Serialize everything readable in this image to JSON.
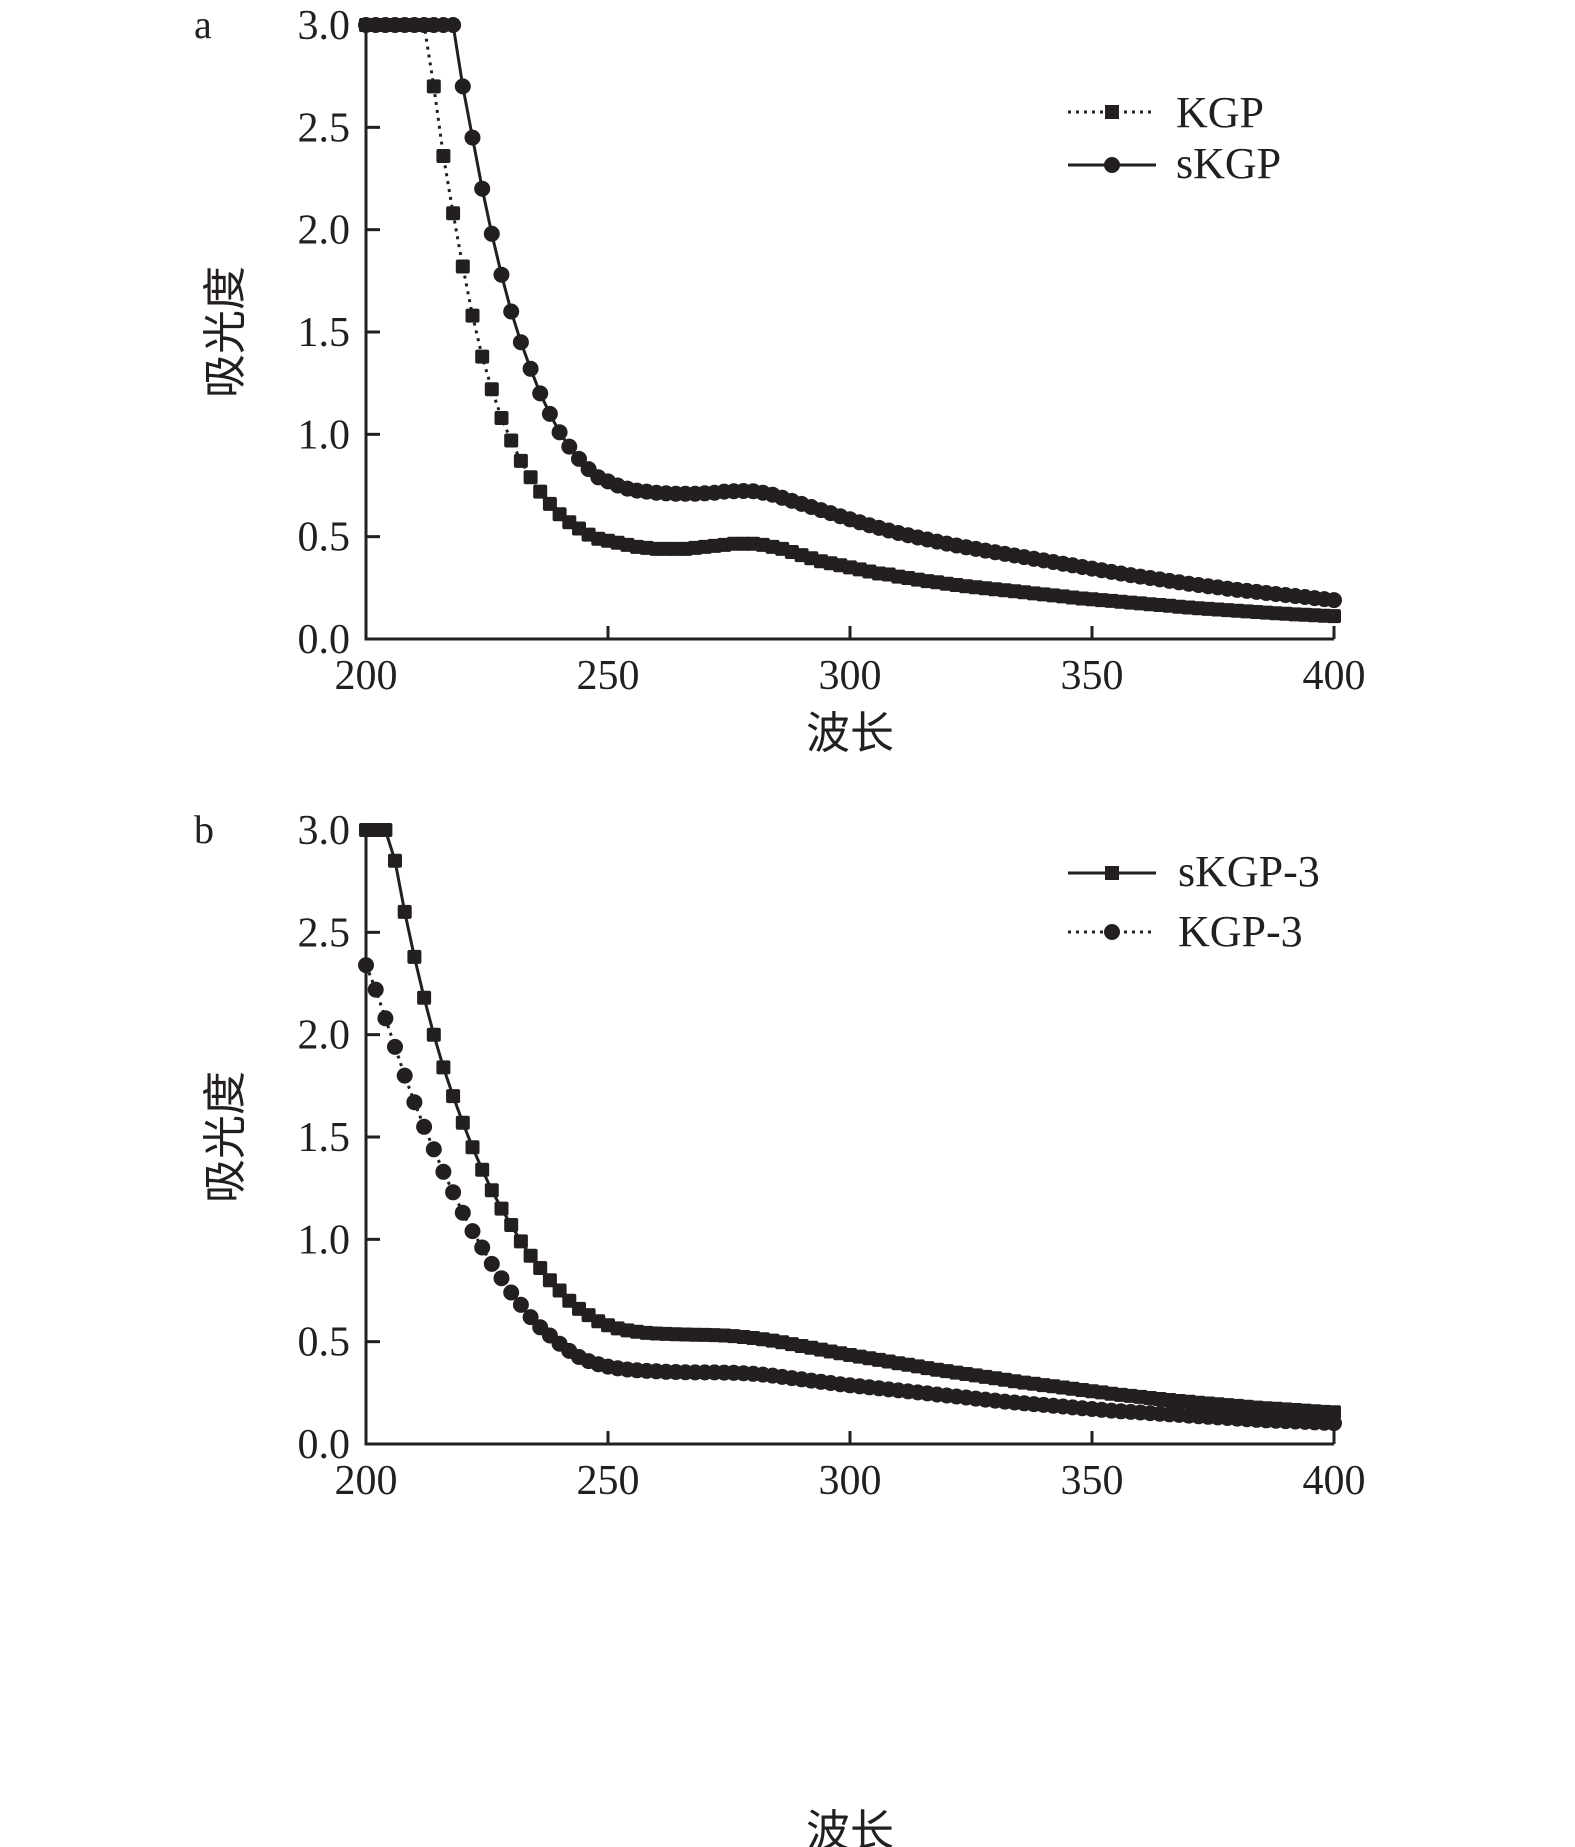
{
  "chart_data": [
    {
      "type": "scatter",
      "panel_label": "a",
      "xlabel": "波长",
      "ylabel": "吸光度",
      "xlim": [
        200,
        400
      ],
      "ylim": [
        0.0,
        3.0
      ],
      "x_ticks": [
        "200",
        "250",
        "300",
        "350",
        "400"
      ],
      "y_ticks": [
        "0.0",
        "0.5",
        "1.0",
        "1.5",
        "2.0",
        "2.5",
        "3.0"
      ],
      "grid": false,
      "legend_position": "top-right",
      "x": [
        200,
        202,
        204,
        206,
        208,
        210,
        212,
        214,
        216,
        218,
        220,
        222,
        224,
        226,
        228,
        230,
        232,
        234,
        236,
        238,
        240,
        242,
        244,
        246,
        248,
        250,
        252,
        254,
        256,
        258,
        260,
        262,
        264,
        266,
        268,
        270,
        272,
        274,
        276,
        278,
        280,
        282,
        284,
        286,
        288,
        290,
        292,
        294,
        296,
        298,
        300,
        302,
        304,
        306,
        308,
        310,
        312,
        314,
        316,
        318,
        320,
        322,
        324,
        326,
        328,
        330,
        332,
        334,
        336,
        338,
        340,
        342,
        344,
        346,
        348,
        350,
        352,
        354,
        356,
        358,
        360,
        362,
        364,
        366,
        368,
        370,
        372,
        374,
        376,
        378,
        380,
        382,
        384,
        386,
        388,
        390,
        392,
        394,
        396,
        398,
        400
      ],
      "series": [
        {
          "name": "KGP",
          "line_style": "dotted",
          "marker": "square",
          "color": "#231f20",
          "values": [
            3.0,
            3.0,
            3.0,
            3.0,
            3.0,
            3.0,
            3.0,
            2.7,
            2.36,
            2.08,
            1.82,
            1.58,
            1.38,
            1.22,
            1.08,
            0.97,
            0.87,
            0.79,
            0.72,
            0.66,
            0.61,
            0.57,
            0.54,
            0.51,
            0.49,
            0.48,
            0.47,
            0.46,
            0.45,
            0.445,
            0.44,
            0.44,
            0.44,
            0.44,
            0.445,
            0.45,
            0.455,
            0.46,
            0.465,
            0.465,
            0.465,
            0.46,
            0.45,
            0.44,
            0.425,
            0.41,
            0.395,
            0.38,
            0.37,
            0.36,
            0.35,
            0.34,
            0.33,
            0.32,
            0.315,
            0.305,
            0.298,
            0.29,
            0.283,
            0.277,
            0.27,
            0.264,
            0.258,
            0.253,
            0.248,
            0.243,
            0.238,
            0.233,
            0.228,
            0.223,
            0.218,
            0.213,
            0.208,
            0.203,
            0.198,
            0.194,
            0.19,
            0.186,
            0.182,
            0.178,
            0.174,
            0.17,
            0.166,
            0.162,
            0.158,
            0.154,
            0.15,
            0.147,
            0.144,
            0.141,
            0.138,
            0.135,
            0.132,
            0.129,
            0.126,
            0.123,
            0.12,
            0.118,
            0.116,
            0.114,
            0.112
          ]
        },
        {
          "name": "sKGP",
          "line_style": "solid",
          "marker": "circle",
          "color": "#231f20",
          "values": [
            3.0,
            3.0,
            3.0,
            3.0,
            3.0,
            3.0,
            3.0,
            3.0,
            3.0,
            3.0,
            2.7,
            2.45,
            2.2,
            1.98,
            1.78,
            1.6,
            1.45,
            1.32,
            1.2,
            1.1,
            1.01,
            0.94,
            0.88,
            0.83,
            0.79,
            0.77,
            0.75,
            0.735,
            0.725,
            0.72,
            0.715,
            0.712,
            0.71,
            0.71,
            0.71,
            0.712,
            0.715,
            0.72,
            0.722,
            0.723,
            0.722,
            0.715,
            0.705,
            0.69,
            0.675,
            0.66,
            0.645,
            0.63,
            0.615,
            0.6,
            0.585,
            0.57,
            0.556,
            0.543,
            0.53,
            0.518,
            0.507,
            0.496,
            0.486,
            0.476,
            0.466,
            0.457,
            0.448,
            0.44,
            0.432,
            0.424,
            0.416,
            0.408,
            0.4,
            0.392,
            0.384,
            0.376,
            0.368,
            0.36,
            0.352,
            0.344,
            0.336,
            0.328,
            0.32,
            0.312,
            0.305,
            0.298,
            0.291,
            0.284,
            0.277,
            0.27,
            0.264,
            0.258,
            0.252,
            0.246,
            0.24,
            0.235,
            0.23,
            0.225,
            0.22,
            0.215,
            0.21,
            0.205,
            0.2,
            0.195,
            0.19
          ]
        }
      ]
    },
    {
      "type": "scatter",
      "panel_label": "b",
      "xlabel": "波长",
      "ylabel": "吸光度",
      "xlim": [
        200,
        400
      ],
      "ylim": [
        0.0,
        3.0
      ],
      "x_ticks": [
        "200",
        "250",
        "300",
        "350",
        "400"
      ],
      "y_ticks": [
        "0.0",
        "0.5",
        "1.0",
        "1.5",
        "2.0",
        "2.5",
        "3.0"
      ],
      "grid": false,
      "legend_position": "top-right",
      "x": [
        200,
        202,
        204,
        206,
        208,
        210,
        212,
        214,
        216,
        218,
        220,
        222,
        224,
        226,
        228,
        230,
        232,
        234,
        236,
        238,
        240,
        242,
        244,
        246,
        248,
        250,
        252,
        254,
        256,
        258,
        260,
        262,
        264,
        266,
        268,
        270,
        272,
        274,
        276,
        278,
        280,
        282,
        284,
        286,
        288,
        290,
        292,
        294,
        296,
        298,
        300,
        302,
        304,
        306,
        308,
        310,
        312,
        314,
        316,
        318,
        320,
        322,
        324,
        326,
        328,
        330,
        332,
        334,
        336,
        338,
        340,
        342,
        344,
        346,
        348,
        350,
        352,
        354,
        356,
        358,
        360,
        362,
        364,
        366,
        368,
        370,
        372,
        374,
        376,
        378,
        380,
        382,
        384,
        386,
        388,
        390,
        392,
        394,
        396,
        398,
        400
      ],
      "series": [
        {
          "name": "sKGP-3",
          "line_style": "solid",
          "marker": "square",
          "color": "#231f20",
          "values": [
            3.0,
            3.0,
            3.0,
            2.85,
            2.6,
            2.38,
            2.18,
            2.0,
            1.84,
            1.7,
            1.57,
            1.45,
            1.34,
            1.24,
            1.15,
            1.07,
            0.99,
            0.92,
            0.86,
            0.8,
            0.75,
            0.7,
            0.66,
            0.63,
            0.6,
            0.58,
            0.565,
            0.555,
            0.548,
            0.543,
            0.54,
            0.538,
            0.536,
            0.535,
            0.534,
            0.533,
            0.532,
            0.53,
            0.527,
            0.523,
            0.518,
            0.512,
            0.505,
            0.497,
            0.488,
            0.479,
            0.47,
            0.461,
            0.452,
            0.443,
            0.435,
            0.427,
            0.419,
            0.411,
            0.403,
            0.395,
            0.387,
            0.379,
            0.371,
            0.363,
            0.356,
            0.349,
            0.342,
            0.335,
            0.328,
            0.321,
            0.314,
            0.307,
            0.3,
            0.294,
            0.288,
            0.282,
            0.276,
            0.27,
            0.264,
            0.258,
            0.252,
            0.246,
            0.24,
            0.235,
            0.23,
            0.225,
            0.22,
            0.215,
            0.21,
            0.206,
            0.202,
            0.198,
            0.194,
            0.19,
            0.186,
            0.182,
            0.178,
            0.175,
            0.172,
            0.169,
            0.166,
            0.163,
            0.16,
            0.157,
            0.155
          ]
        },
        {
          "name": "KGP-3",
          "line_style": "dotted",
          "marker": "circle",
          "color": "#231f20",
          "values": [
            2.34,
            2.22,
            2.08,
            1.94,
            1.8,
            1.67,
            1.55,
            1.44,
            1.33,
            1.23,
            1.13,
            1.04,
            0.96,
            0.88,
            0.81,
            0.74,
            0.68,
            0.62,
            0.57,
            0.53,
            0.49,
            0.455,
            0.425,
            0.405,
            0.39,
            0.378,
            0.37,
            0.364,
            0.36,
            0.357,
            0.355,
            0.353,
            0.352,
            0.351,
            0.35,
            0.35,
            0.35,
            0.349,
            0.348,
            0.346,
            0.343,
            0.339,
            0.334,
            0.328,
            0.322,
            0.316,
            0.31,
            0.304,
            0.298,
            0.292,
            0.287,
            0.282,
            0.277,
            0.272,
            0.267,
            0.262,
            0.257,
            0.252,
            0.247,
            0.242,
            0.237,
            0.232,
            0.227,
            0.222,
            0.217,
            0.212,
            0.207,
            0.203,
            0.199,
            0.195,
            0.191,
            0.187,
            0.183,
            0.179,
            0.175,
            0.171,
            0.167,
            0.163,
            0.16,
            0.157,
            0.154,
            0.151,
            0.148,
            0.145,
            0.142,
            0.139,
            0.136,
            0.133,
            0.13,
            0.127,
            0.124,
            0.121,
            0.118,
            0.116,
            0.114,
            0.112,
            0.11,
            0.108,
            0.106,
            0.104,
            0.102
          ]
        }
      ]
    }
  ]
}
